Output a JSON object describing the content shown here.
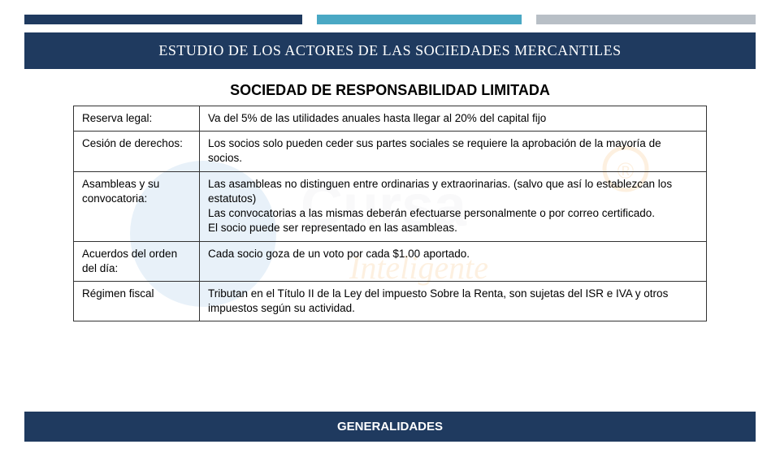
{
  "accent": {
    "segments": [
      {
        "color": "#1f3a5f",
        "width": "38%"
      },
      {
        "color": "#ffffff",
        "width": "2%"
      },
      {
        "color": "#4aa8c4",
        "width": "28%"
      },
      {
        "color": "#ffffff",
        "width": "2%"
      },
      {
        "color": "#b8bfc6",
        "width": "30%"
      }
    ]
  },
  "header": {
    "background": "#1f3a5f",
    "text": "ESTUDIO DE LOS ACTORES DE LAS SOCIEDADES MERCANTILES"
  },
  "subtitle": "SOCIEDAD DE RESPONSABILIDAD LIMITADA",
  "table": {
    "border_color": "#333333",
    "font_size": 13.5,
    "rows": [
      {
        "label": "Reserva legal:",
        "value": "Va del   5%  de las utilidades anuales hasta llegar al 20% del capital fijo"
      },
      {
        "label": "Cesión de derechos:",
        "value": "Los socios  solo pueden ceder sus partes sociales se requiere la  aprobación de la mayoría de socios."
      },
      {
        "label": "Asambleas y su convocatoria:",
        "value": "Las asambleas no distinguen entre ordinarias y extraorinarias. (salvo que así lo establezcan los estatutos)\nLas convocatorias a las mismas deberán efectuarse personalmente o por correo certificado.\nEl socio puede ser representado en las asambleas."
      },
      {
        "label": "Acuerdos del orden del día:",
        "value": "Cada socio goza de un voto por cada $1.00 aportado."
      },
      {
        "label": "Régimen fiscal",
        "value": "Tributan en el Título II  de la Ley del impuesto Sobre la Renta, son sujetas del ISR e IVA y otros impuestos según su actividad."
      }
    ]
  },
  "footer": {
    "background": "#1f3a5f",
    "text": "GENERALIDADES"
  },
  "watermark": {
    "ring_color": "#f2a23a",
    "text_color": "#d9d9e0",
    "circle_fill": "#6aa5d8"
  }
}
